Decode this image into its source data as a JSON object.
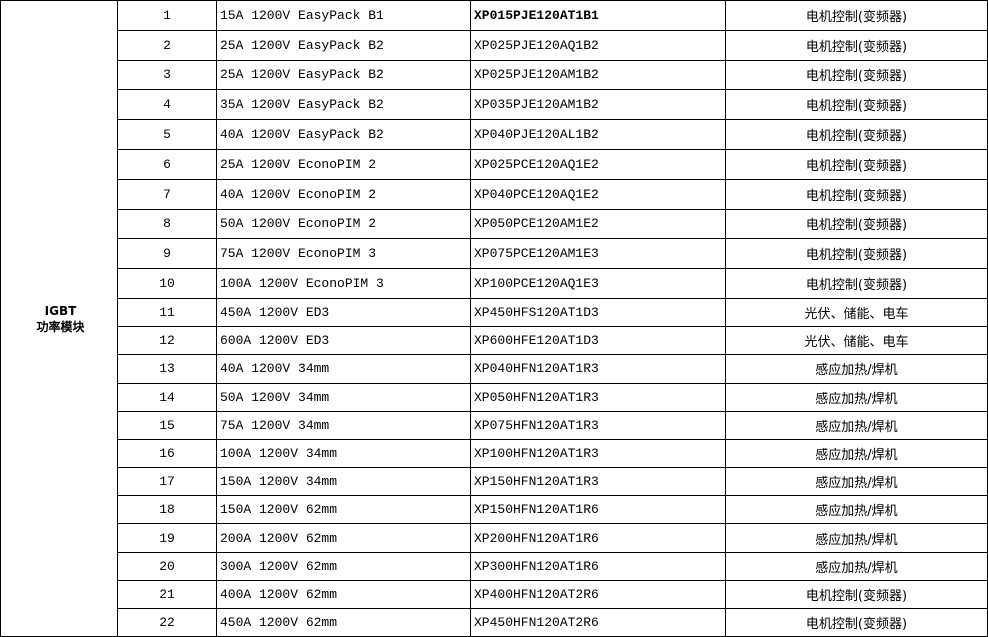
{
  "category": {
    "line1": "IGBT",
    "line2": "功率模块"
  },
  "rows": [
    {
      "no": "1",
      "spec": "15A 1200V EasyPack B1",
      "part": "XP015PJE120AT1B1",
      "app": "电机控制(变频器)"
    },
    {
      "no": "2",
      "spec": "25A 1200V EasyPack B2",
      "part": "XP025PJE120AQ1B2",
      "app": "电机控制(变频器)"
    },
    {
      "no": "3",
      "spec": "25A 1200V EasyPack B2",
      "part": "XP025PJE120AM1B2",
      "app": "电机控制(变频器)"
    },
    {
      "no": "4",
      "spec": "35A 1200V EasyPack B2",
      "part": "XP035PJE120AM1B2",
      "app": "电机控制(变频器)"
    },
    {
      "no": "5",
      "spec": "40A 1200V EasyPack B2",
      "part": "XP040PJE120AL1B2",
      "app": "电机控制(变频器)"
    },
    {
      "no": "6",
      "spec": "25A 1200V EconoPIM 2",
      "part": "XP025PCE120AQ1E2",
      "app": "电机控制(变频器)"
    },
    {
      "no": "7",
      "spec": "40A 1200V EconoPIM 2",
      "part": "XP040PCE120AQ1E2",
      "app": "电机控制(变频器)"
    },
    {
      "no": "8",
      "spec": "50A 1200V EconoPIM 2",
      "part": "XP050PCE120AM1E2",
      "app": "电机控制(变频器)"
    },
    {
      "no": "9",
      "spec": "75A 1200V EconoPIM 3",
      "part": "XP075PCE120AM1E3",
      "app": "电机控制(变频器)"
    },
    {
      "no": "10",
      "spec": "100A 1200V EconoPIM 3",
      "part": "XP100PCE120AQ1E3",
      "app": "电机控制(变频器)"
    },
    {
      "no": "11",
      "spec": "450A 1200V ED3",
      "part": "XP450HFS120AT1D3",
      "app": "光伏、储能、电车"
    },
    {
      "no": "12",
      "spec": "600A 1200V ED3",
      "part": "XP600HFE120AT1D3",
      "app": "光伏、储能、电车"
    },
    {
      "no": "13",
      "spec": "40A 1200V 34mm",
      "part": "XP040HFN120AT1R3",
      "app": "感应加热/焊机"
    },
    {
      "no": "14",
      "spec": "50A 1200V 34mm",
      "part": "XP050HFN120AT1R3",
      "app": "感应加热/焊机"
    },
    {
      "no": "15",
      "spec": "75A 1200V 34mm",
      "part": "XP075HFN120AT1R3",
      "app": "感应加热/焊机"
    },
    {
      "no": "16",
      "spec": "100A 1200V 34mm",
      "part": "XP100HFN120AT1R3",
      "app": "感应加热/焊机"
    },
    {
      "no": "17",
      "spec": "150A 1200V 34mm",
      "part": "XP150HFN120AT1R3",
      "app": "感应加热/焊机"
    },
    {
      "no": "18",
      "spec": "150A 1200V 62mm",
      "part": "XP150HFN120AT1R6",
      "app": "感应加热/焊机"
    },
    {
      "no": "19",
      "spec": "200A 1200V 62mm",
      "part": "XP200HFN120AT1R6",
      "app": "感应加热/焊机"
    },
    {
      "no": "20",
      "spec": "300A 1200V 62mm",
      "part": "XP300HFN120AT1R6",
      "app": "感应加热/焊机"
    },
    {
      "no": "21",
      "spec": "400A 1200V 62mm",
      "part": "XP400HFN120AT2R6",
      "app": "电机控制(变频器)"
    },
    {
      "no": "22",
      "spec": "450A 1200V 62mm",
      "part": "XP450HFN120AT2R6",
      "app": "电机控制(变频器)"
    }
  ]
}
